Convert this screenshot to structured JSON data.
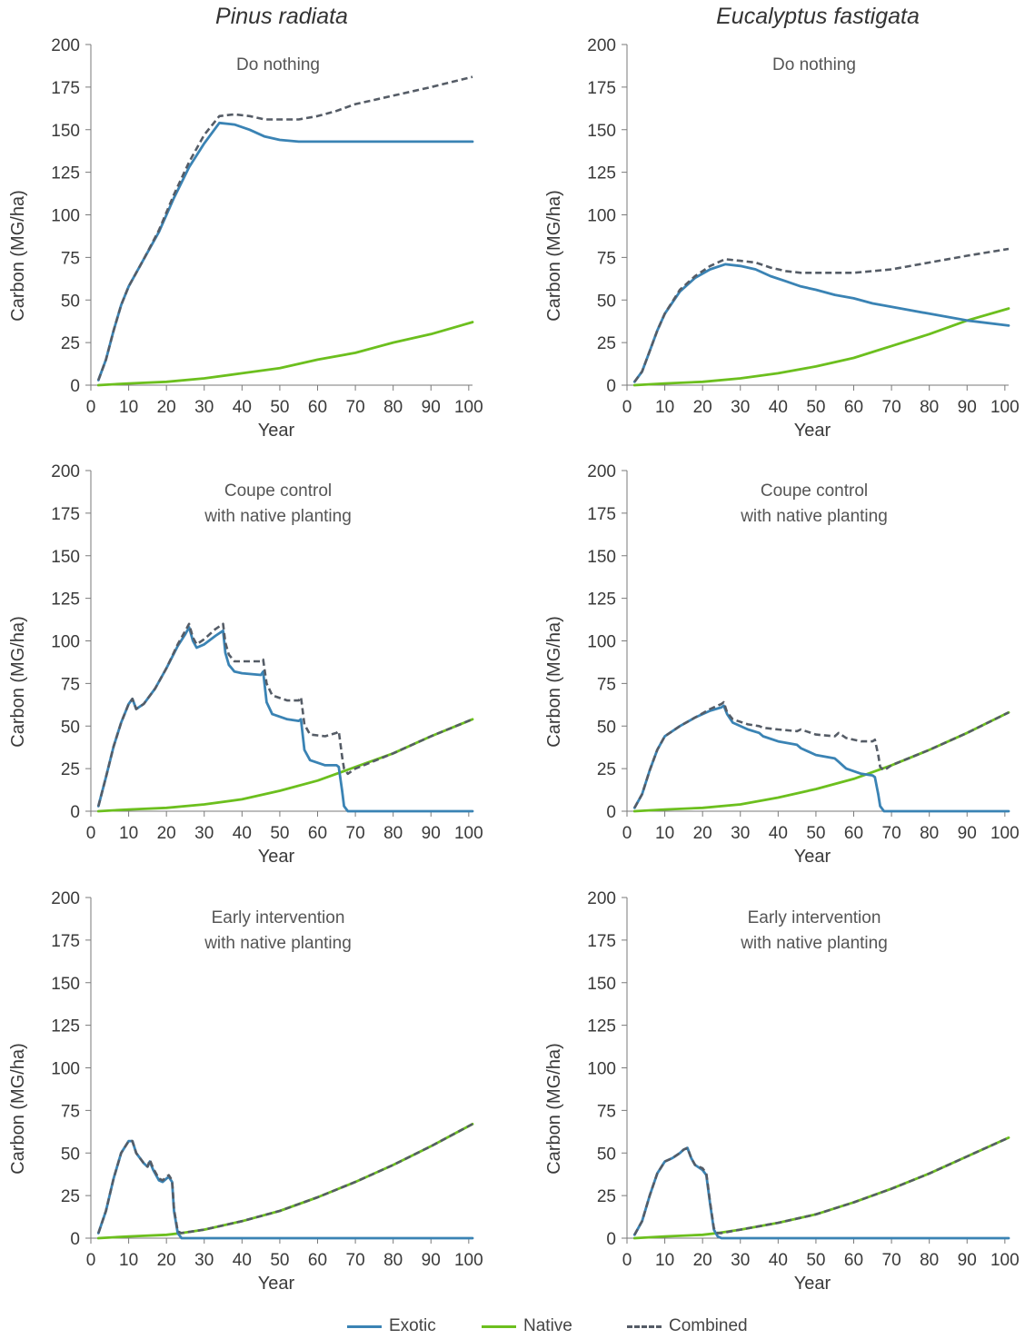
{
  "column_titles": [
    "Pinus radiata",
    "Eucalyptus fastigata"
  ],
  "legend": [
    {
      "label": "Exotic",
      "color": "#3a83b4",
      "style": "solid"
    },
    {
      "label": "Native",
      "color": "#6cbf1e",
      "style": "solid"
    },
    {
      "label": "Combined",
      "color": "#555c66",
      "style": "dashed"
    }
  ],
  "chart_data": [
    {
      "type": "line",
      "panel": "pinus-do-nothing",
      "title": "Do nothing",
      "xlabel": "Year",
      "ylabel": "Carbon (MG/ha)",
      "xlim": [
        0,
        101
      ],
      "ylim": [
        0,
        200
      ],
      "xticks": [
        0,
        10,
        20,
        30,
        40,
        50,
        60,
        70,
        80,
        90,
        100
      ],
      "yticks": [
        0,
        25,
        50,
        75,
        100,
        125,
        150,
        175,
        200
      ],
      "series": [
        {
          "name": "Exotic",
          "x": [
            2,
            4,
            6,
            8,
            10,
            14,
            18,
            22,
            26,
            30,
            34,
            38,
            42,
            46,
            50,
            55,
            60,
            65,
            70,
            80,
            90,
            101
          ],
          "y": [
            3,
            15,
            32,
            47,
            58,
            74,
            90,
            110,
            128,
            142,
            154,
            153,
            150,
            146,
            144,
            143,
            143,
            143,
            143,
            143,
            143,
            143
          ]
        },
        {
          "name": "Native",
          "x": [
            2,
            10,
            20,
            30,
            40,
            50,
            60,
            70,
            80,
            90,
            101
          ],
          "y": [
            0,
            1,
            2,
            4,
            7,
            10,
            15,
            19,
            25,
            30,
            37
          ]
        },
        {
          "name": "Combined",
          "x": [
            2,
            4,
            6,
            8,
            10,
            14,
            18,
            22,
            26,
            30,
            34,
            38,
            42,
            46,
            50,
            55,
            60,
            65,
            70,
            80,
            90,
            101
          ],
          "y": [
            3,
            15,
            32,
            47,
            58,
            74,
            91,
            112,
            131,
            147,
            158,
            159,
            158,
            156,
            156,
            156,
            158,
            161,
            165,
            170,
            175,
            181
          ]
        }
      ]
    },
    {
      "type": "line",
      "panel": "eucalyptus-do-nothing",
      "title": "Do nothing",
      "xlabel": "Year",
      "ylabel": "Carbon (MG/ha)",
      "xlim": [
        0,
        101
      ],
      "ylim": [
        0,
        200
      ],
      "xticks": [
        0,
        10,
        20,
        30,
        40,
        50,
        60,
        70,
        80,
        90,
        100
      ],
      "yticks": [
        0,
        25,
        50,
        75,
        100,
        125,
        150,
        175,
        200
      ],
      "series": [
        {
          "name": "Exotic",
          "x": [
            2,
            4,
            6,
            8,
            10,
            14,
            18,
            22,
            26,
            30,
            34,
            38,
            42,
            46,
            50,
            55,
            60,
            65,
            70,
            80,
            90,
            101
          ],
          "y": [
            2,
            8,
            20,
            32,
            42,
            55,
            63,
            68,
            71,
            70,
            68,
            64,
            61,
            58,
            56,
            53,
            51,
            48,
            46,
            42,
            38,
            35
          ]
        },
        {
          "name": "Native",
          "x": [
            2,
            10,
            20,
            30,
            40,
            50,
            60,
            70,
            80,
            90,
            101
          ],
          "y": [
            0,
            1,
            2,
            4,
            7,
            11,
            16,
            23,
            30,
            38,
            45
          ]
        },
        {
          "name": "Combined",
          "x": [
            2,
            4,
            6,
            8,
            10,
            14,
            18,
            22,
            26,
            30,
            34,
            38,
            42,
            46,
            50,
            55,
            60,
            65,
            70,
            80,
            90,
            101
          ],
          "y": [
            2,
            8,
            20,
            32,
            42,
            56,
            64,
            70,
            74,
            73,
            72,
            69,
            67,
            66,
            66,
            66,
            66,
            67,
            68,
            72,
            76,
            80
          ]
        }
      ]
    },
    {
      "type": "line",
      "panel": "pinus-coupe-control",
      "title": "Coupe control with native planting",
      "title_lines": [
        "Coupe control",
        "with native planting"
      ],
      "xlabel": "Year",
      "ylabel": "Carbon (MG/ha)",
      "xlim": [
        0,
        101
      ],
      "ylim": [
        0,
        200
      ],
      "xticks": [
        0,
        10,
        20,
        30,
        40,
        50,
        60,
        70,
        80,
        90,
        100
      ],
      "yticks": [
        0,
        25,
        50,
        75,
        100,
        125,
        150,
        175,
        200
      ],
      "series": [
        {
          "name": "Exotic",
          "x": [
            2,
            4,
            6,
            8,
            10,
            11,
            12,
            14,
            17,
            20,
            23,
            25,
            26,
            27,
            28,
            30,
            33,
            35,
            35.6,
            36.5,
            38,
            40,
            45,
            45.6,
            46.5,
            48,
            52,
            55,
            55.6,
            56.5,
            58,
            62,
            65,
            65.6,
            66.5,
            67,
            68,
            70,
            80,
            90,
            101
          ],
          "y": [
            3,
            20,
            38,
            52,
            63,
            66,
            60,
            63,
            72,
            84,
            97,
            104,
            108,
            100,
            96,
            98,
            103,
            106,
            93,
            86,
            82,
            81,
            80,
            82,
            64,
            57,
            54,
            53,
            54,
            36,
            30,
            27,
            27,
            26,
            12,
            3,
            0,
            0,
            0,
            0,
            0
          ]
        },
        {
          "name": "Native",
          "x": [
            2,
            10,
            20,
            30,
            40,
            50,
            60,
            70,
            80,
            90,
            101
          ],
          "y": [
            0,
            1,
            2,
            4,
            7,
            12,
            18,
            26,
            34,
            44,
            54
          ]
        },
        {
          "name": "Combined",
          "x": [
            2,
            4,
            6,
            8,
            10,
            11,
            12,
            14,
            17,
            20,
            23,
            25,
            26,
            27,
            28,
            30,
            33,
            35,
            35.6,
            36.5,
            38,
            40,
            45,
            45.6,
            46.5,
            48,
            52,
            55,
            55.6,
            56.5,
            58,
            62,
            65,
            65.6,
            66.5,
            67,
            68,
            70,
            80,
            90,
            101
          ],
          "y": [
            3,
            20,
            38,
            52,
            63,
            66,
            60,
            63,
            72,
            84,
            98,
            106,
            110,
            102,
            98,
            101,
            107,
            110,
            99,
            92,
            88,
            88,
            88,
            89,
            75,
            68,
            65,
            65,
            67,
            51,
            45,
            44,
            46,
            47,
            32,
            25,
            22,
            25,
            34,
            44,
            54
          ]
        }
      ]
    },
    {
      "type": "line",
      "panel": "eucalyptus-coupe-control",
      "title": "Coupe control with native planting",
      "title_lines": [
        "Coupe control",
        "with native planting"
      ],
      "xlabel": "Year",
      "ylabel": "Carbon (MG/ha)",
      "xlim": [
        0,
        101
      ],
      "ylim": [
        0,
        200
      ],
      "xticks": [
        0,
        10,
        20,
        30,
        40,
        50,
        60,
        70,
        80,
        90,
        100
      ],
      "yticks": [
        0,
        25,
        50,
        75,
        100,
        125,
        150,
        175,
        200
      ],
      "series": [
        {
          "name": "Exotic",
          "x": [
            2,
            4,
            6,
            8,
            10,
            14,
            18,
            22,
            25,
            25.6,
            26.5,
            28,
            32,
            35,
            36,
            40,
            45,
            46,
            50,
            55,
            56,
            58,
            62,
            65,
            65.6,
            66.5,
            67,
            68,
            70,
            80,
            90,
            101
          ],
          "y": [
            2,
            10,
            24,
            36,
            44,
            50,
            55,
            59,
            61,
            62,
            57,
            52,
            48,
            46,
            44,
            41,
            39,
            37,
            33,
            31,
            29,
            25,
            22,
            21,
            20,
            10,
            3,
            0,
            0,
            0,
            0,
            0
          ]
        },
        {
          "name": "Native",
          "x": [
            2,
            10,
            20,
            30,
            40,
            50,
            60,
            70,
            80,
            90,
            101
          ],
          "y": [
            0,
            1,
            2,
            4,
            8,
            13,
            19,
            27,
            36,
            46,
            58
          ]
        },
        {
          "name": "Combined",
          "x": [
            2,
            4,
            6,
            8,
            10,
            14,
            18,
            22,
            25,
            25.6,
            26.5,
            28,
            32,
            35,
            36,
            40,
            45,
            46,
            50,
            55,
            56,
            58,
            62,
            65,
            65.6,
            66.5,
            67,
            68,
            70,
            80,
            90,
            101
          ],
          "y": [
            2,
            10,
            24,
            36,
            44,
            50,
            55,
            60,
            63,
            64,
            58,
            54,
            51,
            50,
            49,
            48,
            47,
            48,
            45,
            44,
            46,
            43,
            41,
            41,
            42,
            33,
            26,
            24,
            27,
            36,
            46,
            58
          ]
        }
      ]
    },
    {
      "type": "line",
      "panel": "pinus-early-intervention",
      "title": "Early intervention with native planting",
      "title_lines": [
        "Early intervention",
        "with native planting"
      ],
      "xlabel": "Year",
      "ylabel": "Carbon (MG/ha)",
      "xlim": [
        0,
        101
      ],
      "ylim": [
        0,
        200
      ],
      "xticks": [
        0,
        10,
        20,
        30,
        40,
        50,
        60,
        70,
        80,
        90,
        100
      ],
      "yticks": [
        0,
        25,
        50,
        75,
        100,
        125,
        150,
        175,
        200
      ],
      "series": [
        {
          "name": "Exotic",
          "x": [
            2,
            4,
            6,
            8,
            10,
            11,
            12,
            14,
            15,
            15.6,
            16.5,
            18,
            19,
            20,
            20.6,
            21.5,
            22,
            23,
            24,
            30,
            40,
            50,
            60,
            70,
            80,
            90,
            101
          ],
          "y": [
            3,
            16,
            35,
            50,
            57,
            57,
            50,
            44,
            42,
            45,
            40,
            34,
            33,
            35,
            36,
            33,
            16,
            3,
            0,
            0,
            0,
            0,
            0,
            0,
            0,
            0,
            0
          ]
        },
        {
          "name": "Native",
          "x": [
            2,
            10,
            20,
            24,
            30,
            40,
            50,
            60,
            70,
            80,
            90,
            101
          ],
          "y": [
            0,
            1,
            2,
            3,
            5,
            10,
            16,
            24,
            33,
            43,
            54,
            67
          ]
        },
        {
          "name": "Combined",
          "x": [
            2,
            4,
            6,
            8,
            10,
            11,
            12,
            14,
            15,
            15.6,
            16.5,
            18,
            19,
            20,
            20.6,
            21.5,
            22,
            23,
            24,
            30,
            40,
            50,
            60,
            70,
            80,
            90,
            101
          ],
          "y": [
            3,
            16,
            35,
            50,
            57,
            57,
            50,
            44,
            42,
            46,
            41,
            35,
            34,
            36,
            37,
            34,
            17,
            4,
            3,
            5,
            10,
            16,
            24,
            33,
            43,
            54,
            67
          ]
        }
      ]
    },
    {
      "type": "line",
      "panel": "eucalyptus-early-intervention",
      "title": "Early intervention with native planting",
      "title_lines": [
        "Early intervention",
        "with native planting"
      ],
      "xlabel": "Year",
      "ylabel": "Carbon (MG/ha)",
      "xlim": [
        0,
        101
      ],
      "ylim": [
        0,
        200
      ],
      "xticks": [
        0,
        10,
        20,
        30,
        40,
        50,
        60,
        70,
        80,
        90,
        100
      ],
      "yticks": [
        0,
        25,
        50,
        75,
        100,
        125,
        150,
        175,
        200
      ],
      "series": [
        {
          "name": "Exotic",
          "x": [
            2,
            4,
            6,
            8,
            10,
            12,
            14,
            15,
            16,
            17,
            18,
            20,
            21,
            22,
            23,
            24,
            25,
            30,
            40,
            50,
            60,
            70,
            80,
            90,
            101
          ],
          "y": [
            2,
            10,
            25,
            38,
            45,
            47,
            50,
            52,
            53,
            47,
            43,
            40,
            37,
            20,
            5,
            1,
            0,
            0,
            0,
            0,
            0,
            0,
            0,
            0,
            0
          ]
        },
        {
          "name": "Native",
          "x": [
            2,
            10,
            20,
            24,
            30,
            40,
            50,
            60,
            70,
            80,
            90,
            101
          ],
          "y": [
            0,
            1,
            2,
            3,
            5,
            9,
            14,
            21,
            29,
            38,
            48,
            59
          ]
        },
        {
          "name": "Combined",
          "x": [
            2,
            4,
            6,
            8,
            10,
            12,
            14,
            15,
            16,
            17,
            18,
            20,
            21,
            22,
            23,
            24,
            25,
            30,
            40,
            50,
            60,
            70,
            80,
            90,
            101
          ],
          "y": [
            2,
            10,
            25,
            38,
            45,
            47,
            50,
            52,
            53,
            47,
            43,
            41,
            38,
            21,
            6,
            3,
            3,
            5,
            9,
            14,
            21,
            29,
            38,
            48,
            59
          ]
        }
      ]
    }
  ]
}
